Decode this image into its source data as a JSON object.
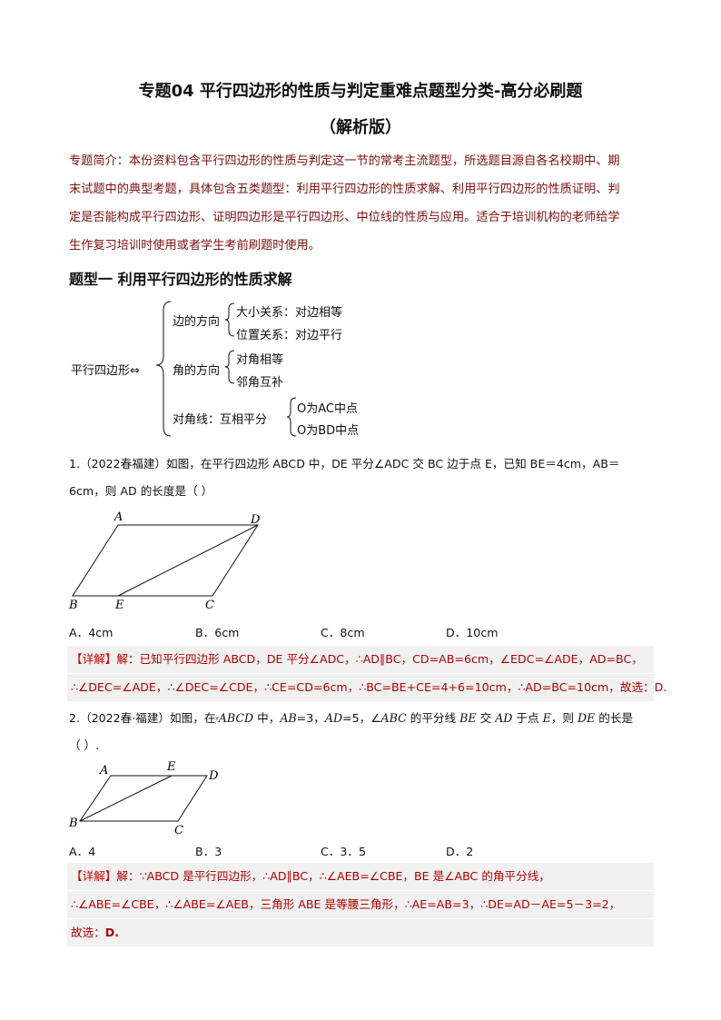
{
  "title": "专题04  平行四边形的性质与判定重难点题型分类-高分必刷题",
  "subtitle": "（解析版）",
  "intro": [
    "专题简介：本份资料包含平行四边形的性质与判定这一节的常考主流题型，所选题目源自各名校期中、期",
    "末试题中的典型考题，具体包含五类题型：利用平行四边形的性质求解、利用平行四边形的性质证明、判",
    "定是否能构成平行四边形、证明四边形是平行四边形、中位线的性质与应用。适合于培训机构的老师给学",
    "生作复习培训时使用或者学生考前刷题时使用。"
  ],
  "section1": "题型一  利用平行四边形的性质求解",
  "diagram": {
    "root": "平行四边形⇔",
    "b1": "边的方向",
    "b1a": "大小关系：对边相等",
    "b1b": "位置关系：对边平行",
    "b2": "角的方向",
    "b2a": "对角相等",
    "b2b": "邻角互补",
    "b3": "对角线：互相平分",
    "b3a": "O为AC中点",
    "b3b": "O为BD中点"
  },
  "q1": {
    "line1": "1.（2022春福建）如图，在平行四边形 ABCD 中，DE 平分∠ADC 交 BC 边于点 E，已知 BE＝4cm，AB＝",
    "line2": "6cm，则 AD 的长度是（    ）",
    "labels": [
      "A",
      "D",
      "B",
      "E",
      "C"
    ],
    "options": [
      "A．4cm",
      "B．6cm",
      "C．8cm",
      "D．10cm"
    ],
    "sol_tag": "【详解】",
    "sol1": "解：已知平行四边形 ABCD，DE 平分∠ADC，∴AD∥BC，CD=AB=6cm，∠EDC=∠ADE，AD=BC，",
    "sol2": "∴∠DEC=∠ADE，∴∠DEC=∠CDE，∴CE=CD=6cm，∴BC=BE+CE=4+6=10cm，∴AD=BC=10cm，故选：D."
  },
  "q2": {
    "line1a": "2.（2022春·福建）如图，在",
    "line1b": "ABCD",
    "line1c": " 中，",
    "ab": "AB",
    "ab_v": "=3，",
    "ad": "AD",
    "ad_v": "=5，∠",
    "abc": "ABC",
    "mid": " 的平分线 ",
    "be": "BE",
    "mid2": " 交 ",
    "ad2": "AD",
    "mid3": " 于点 ",
    "e": "E",
    "mid4": "，则 ",
    "de": "DE",
    "end": " 的长是",
    "line2": "（  ）.",
    "labels": [
      "A",
      "E",
      "D",
      "B",
      "C"
    ],
    "options": [
      "A．4",
      "B．3",
      "C．3．5",
      "D．2"
    ],
    "sol_tag": "【详解】",
    "sol1": "解：∵ABCD 是平行四边形，∴AD∥BC，∴∠AEB=∠CBE，BE 是∠ABC 的角平分线，",
    "sol2": "∴∠ABE=∠CBE，∴∠ABE=∠AEB，三角形 ABE 是等腰三角形，∴AE=AB=3，∴DE=AD－AE=5－3=2，",
    "sol3a": "故选：",
    "sol3b": "D."
  },
  "colors": {
    "intro": "#7b1010",
    "solution": "#b00000",
    "solution_bg": "#f1f1f1"
  }
}
